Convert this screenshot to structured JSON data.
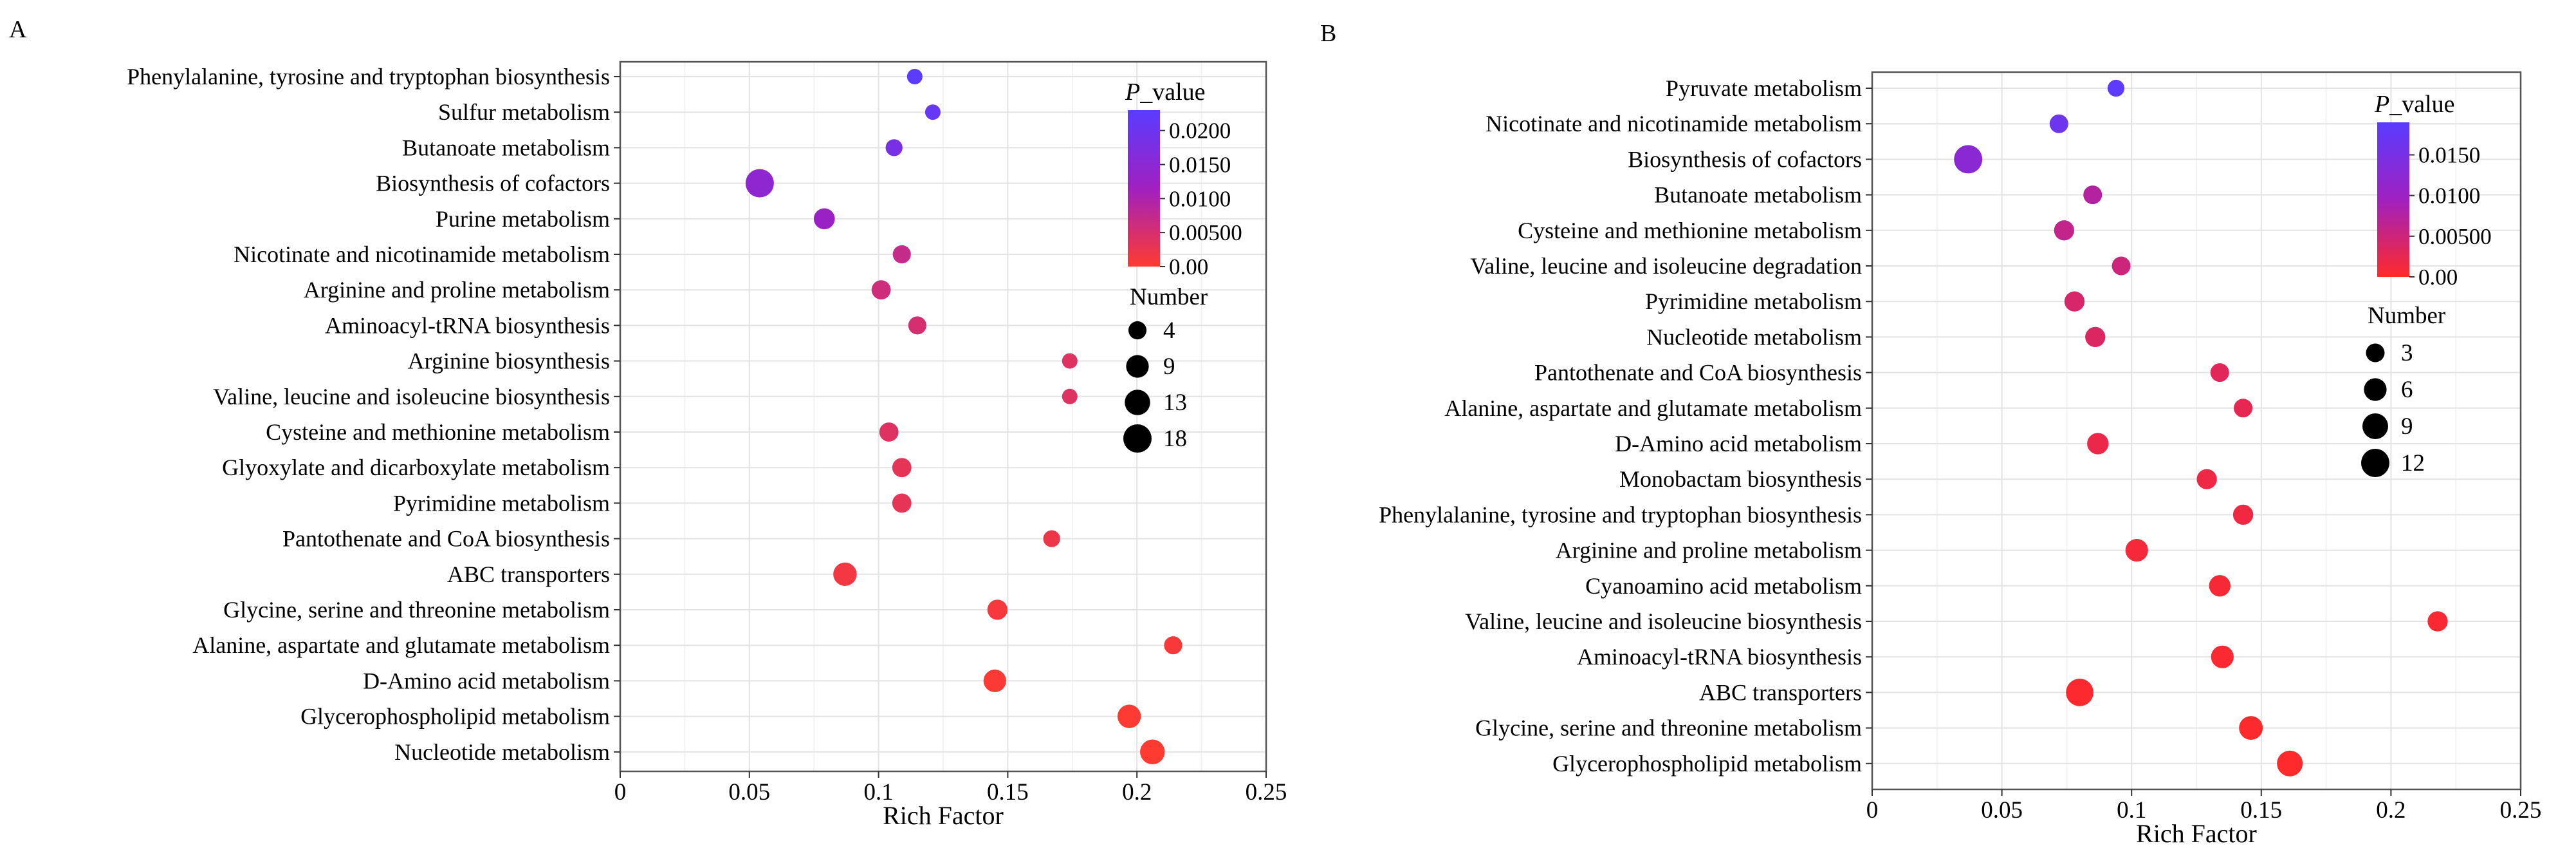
{
  "chart_data": [
    {
      "panel_label": "A",
      "type": "scatter",
      "xlabel": "Rich Factor",
      "xlim": [
        0,
        0.25
      ],
      "xticks": [
        "0",
        "0.05",
        "0.1",
        "0.15",
        "0.2",
        "0.25"
      ],
      "xtick_values": [
        0,
        0.05,
        0.1,
        0.15,
        0.2,
        0.25
      ],
      "grid": true,
      "color_legend": {
        "title_italic": "P",
        "title_rest": "_value",
        "ticks": [
          "0.0200",
          "0.0150",
          "0.0100",
          "0.00500",
          "0.00"
        ],
        "tick_values": [
          0.02,
          0.015,
          0.01,
          0.005,
          0
        ],
        "max": 0.023,
        "color_low": "#ff3b30",
        "color_mid": "#a020c0",
        "color_high": "#5a3cff",
        "placement": "top-right"
      },
      "size_legend": {
        "title": "Number",
        "labels": [
          "4",
          "9",
          "13",
          "18"
        ],
        "values": [
          4,
          9,
          13,
          18
        ],
        "placement": "right"
      },
      "points": [
        {
          "pathway": "Phenylalanine, tyrosine and tryptophan biosynthesis",
          "rich_factor": 0.114,
          "count": 2,
          "p_value": 0.0225
        },
        {
          "pathway": "Sulfur metabolism",
          "rich_factor": 0.121,
          "count": 2,
          "p_value": 0.021
        },
        {
          "pathway": "Butanoate metabolism",
          "rich_factor": 0.106,
          "count": 3,
          "p_value": 0.018
        },
        {
          "pathway": "Biosynthesis of cofactors",
          "rich_factor": 0.054,
          "count": 18,
          "p_value": 0.0145
        },
        {
          "pathway": "Purine metabolism",
          "rich_factor": 0.079,
          "count": 7,
          "p_value": 0.0125
        },
        {
          "pathway": "Nicotinate and nicotinamide metabolism",
          "rich_factor": 0.109,
          "count": 4,
          "p_value": 0.007
        },
        {
          "pathway": "Arginine and proline metabolism",
          "rich_factor": 0.101,
          "count": 5,
          "p_value": 0.006
        },
        {
          "pathway": "Aminoacyl-tRNA biosynthesis",
          "rich_factor": 0.115,
          "count": 4,
          "p_value": 0.005
        },
        {
          "pathway": "Arginine biosynthesis",
          "rich_factor": 0.174,
          "count": 2,
          "p_value": 0.004
        },
        {
          "pathway": "Valine, leucine and isoleucine biosynthesis",
          "rich_factor": 0.174,
          "count": 2,
          "p_value": 0.004
        },
        {
          "pathway": "Cysteine and methionine metabolism",
          "rich_factor": 0.104,
          "count": 5,
          "p_value": 0.004
        },
        {
          "pathway": "Glyoxylate and dicarboxylate metabolism",
          "rich_factor": 0.109,
          "count": 5,
          "p_value": 0.003
        },
        {
          "pathway": "Pyrimidine metabolism",
          "rich_factor": 0.109,
          "count": 5,
          "p_value": 0.003
        },
        {
          "pathway": "Pantothenate and CoA biosynthesis",
          "rich_factor": 0.167,
          "count": 3,
          "p_value": 0.002
        },
        {
          "pathway": "ABC transporters",
          "rich_factor": 0.087,
          "count": 10,
          "p_value": 0.0015
        },
        {
          "pathway": "Glycine, serine and threonine metabolism",
          "rich_factor": 0.146,
          "count": 6,
          "p_value": 0.001
        },
        {
          "pathway": "Alanine, aspartate and glutamate metabolism",
          "rich_factor": 0.214,
          "count": 4,
          "p_value": 0.0007
        },
        {
          "pathway": "D-Amino acid metabolism",
          "rich_factor": 0.145,
          "count": 9,
          "p_value": 0.0005
        },
        {
          "pathway": "Glycerophospholipid metabolism",
          "rich_factor": 0.197,
          "count": 10,
          "p_value": 0.0002
        },
        {
          "pathway": "Nucleotide metabolism",
          "rich_factor": 0.206,
          "count": 12,
          "p_value": 0.0001
        }
      ]
    },
    {
      "panel_label": "B",
      "type": "scatter",
      "xlabel": "Rich Factor",
      "xlim": [
        0,
        0.25
      ],
      "xticks": [
        "0",
        "0.05",
        "0.1",
        "0.15",
        "0.2",
        "0.25"
      ],
      "xtick_values": [
        0,
        0.05,
        0.1,
        0.15,
        0.2,
        0.25
      ],
      "grid": true,
      "color_legend": {
        "title_italic": "P",
        "title_rest": "_value",
        "ticks": [
          "0.0150",
          "0.0100",
          "0.00500",
          "0.00"
        ],
        "tick_values": [
          0.015,
          0.01,
          0.005,
          0
        ],
        "max": 0.019,
        "color_low": "#ff2a2a",
        "color_mid": "#a020c0",
        "color_high": "#5a3cff",
        "placement": "top-right"
      },
      "size_legend": {
        "title": "Number",
        "labels": [
          "3",
          "6",
          "9",
          "12"
        ],
        "values": [
          3,
          6,
          9,
          12
        ],
        "placement": "right"
      },
      "points": [
        {
          "pathway": "Pyruvate metabolism",
          "rich_factor": 0.094,
          "count": 2,
          "p_value": 0.0185
        },
        {
          "pathway": "Nicotinate and nicotinamide metabolism",
          "rich_factor": 0.072,
          "count": 3,
          "p_value": 0.0165
        },
        {
          "pathway": "Biosynthesis of cofactors",
          "rich_factor": 0.037,
          "count": 12,
          "p_value": 0.0125
        },
        {
          "pathway": "Butanoate metabolism",
          "rich_factor": 0.085,
          "count": 3,
          "p_value": 0.0075
        },
        {
          "pathway": "Cysteine and methionine metabolism",
          "rich_factor": 0.074,
          "count": 4,
          "p_value": 0.006
        },
        {
          "pathway": "Valine, leucine and isoleucine degradation",
          "rich_factor": 0.096,
          "count": 3,
          "p_value": 0.005
        },
        {
          "pathway": "Pyrimidine metabolism",
          "rich_factor": 0.078,
          "count": 4,
          "p_value": 0.004
        },
        {
          "pathway": "Nucleotide metabolism",
          "rich_factor": 0.086,
          "count": 4,
          "p_value": 0.0035
        },
        {
          "pathway": "Pantothenate and CoA biosynthesis",
          "rich_factor": 0.134,
          "count": 3,
          "p_value": 0.003
        },
        {
          "pathway": "Alanine, aspartate and glutamate metabolism",
          "rich_factor": 0.143,
          "count": 3,
          "p_value": 0.0025
        },
        {
          "pathway": "D-Amino acid metabolism",
          "rich_factor": 0.087,
          "count": 5,
          "p_value": 0.002
        },
        {
          "pathway": "Monobactam biosynthesis",
          "rich_factor": 0.129,
          "count": 4,
          "p_value": 0.0017
        },
        {
          "pathway": "Phenylalanine, tyrosine and tryptophan biosynthesis",
          "rich_factor": 0.143,
          "count": 4,
          "p_value": 0.0015
        },
        {
          "pathway": "Arginine and proline metabolism",
          "rich_factor": 0.102,
          "count": 6,
          "p_value": 0.001
        },
        {
          "pathway": "Cyanoamino acid metabolism",
          "rich_factor": 0.134,
          "count": 5,
          "p_value": 0.0008
        },
        {
          "pathway": "Valine, leucine and isoleucine biosynthesis",
          "rich_factor": 0.218,
          "count": 4,
          "p_value": 0.0006
        },
        {
          "pathway": "Aminoacyl-tRNA biosynthesis",
          "rich_factor": 0.135,
          "count": 6,
          "p_value": 0.0005
        },
        {
          "pathway": "ABC transporters",
          "rich_factor": 0.08,
          "count": 11,
          "p_value": 0.0003
        },
        {
          "pathway": "Glycine, serine and threonine metabolism",
          "rich_factor": 0.146,
          "count": 7,
          "p_value": 0.0002
        },
        {
          "pathway": "Glycerophospholipid metabolism",
          "rich_factor": 0.161,
          "count": 9,
          "p_value": 0.0001
        }
      ]
    }
  ]
}
